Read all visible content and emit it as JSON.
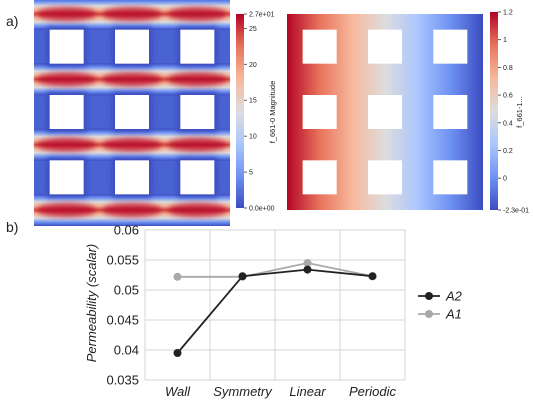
{
  "panel_a": {
    "label": "a)",
    "left_field": {
      "colorbar": {
        "title": "f_661-0 Magnitude",
        "ticks": [
          "2.7e+01",
          "25",
          "20",
          "15",
          "10",
          "5",
          "0.0e+00"
        ],
        "tick_values": [
          27,
          25,
          20,
          15,
          10,
          5,
          0
        ],
        "range": [
          0,
          27
        ],
        "colors": [
          "#3b4cc0",
          "#6f92f3",
          "#aac7fd",
          "#dddddd",
          "#f7b89c",
          "#e7745b",
          "#b40426"
        ]
      },
      "obstacle_rows": 3,
      "obstacle_cols": 3
    },
    "right_field": {
      "colorbar": {
        "title": "f_661-1...",
        "ticks": [
          "1.2",
          "1",
          "0.8",
          "0.6",
          "0.4",
          "0.2",
          "0",
          "-2.3e-01"
        ],
        "tick_values": [
          1.2,
          1.0,
          0.8,
          0.6,
          0.4,
          0.2,
          0.0,
          -0.23
        ],
        "range": [
          -0.23,
          1.2
        ],
        "colors": [
          "#3b4cc0",
          "#6f92f3",
          "#aac7fd",
          "#dddddd",
          "#f7b89c",
          "#e7745b",
          "#b40426"
        ]
      },
      "obstacle_rows": 3,
      "obstacle_cols": 3
    }
  },
  "panel_b": {
    "label": "b)",
    "chart_data": {
      "type": "line",
      "categories": [
        "Wall",
        "Symmetry",
        "Linear",
        "Periodic"
      ],
      "ylabel": "Permeability (scalar)",
      "xlabel": "",
      "ylim": [
        0.035,
        0.06
      ],
      "yticks": [
        "0.06",
        "0.055",
        "0.05",
        "0.045",
        "0.04",
        "0.035"
      ],
      "ytick_values": [
        0.06,
        0.055,
        0.05,
        0.045,
        0.04,
        0.035
      ],
      "grid": true,
      "legend_position": "right",
      "series": [
        {
          "name": "A2",
          "color": "#222222",
          "values": [
            0.0395,
            0.0523,
            0.0534,
            0.0523
          ]
        },
        {
          "name": "A1",
          "color": "#a9a9a9",
          "values": [
            0.0522,
            0.0522,
            0.0545,
            0.0523
          ]
        }
      ]
    }
  }
}
